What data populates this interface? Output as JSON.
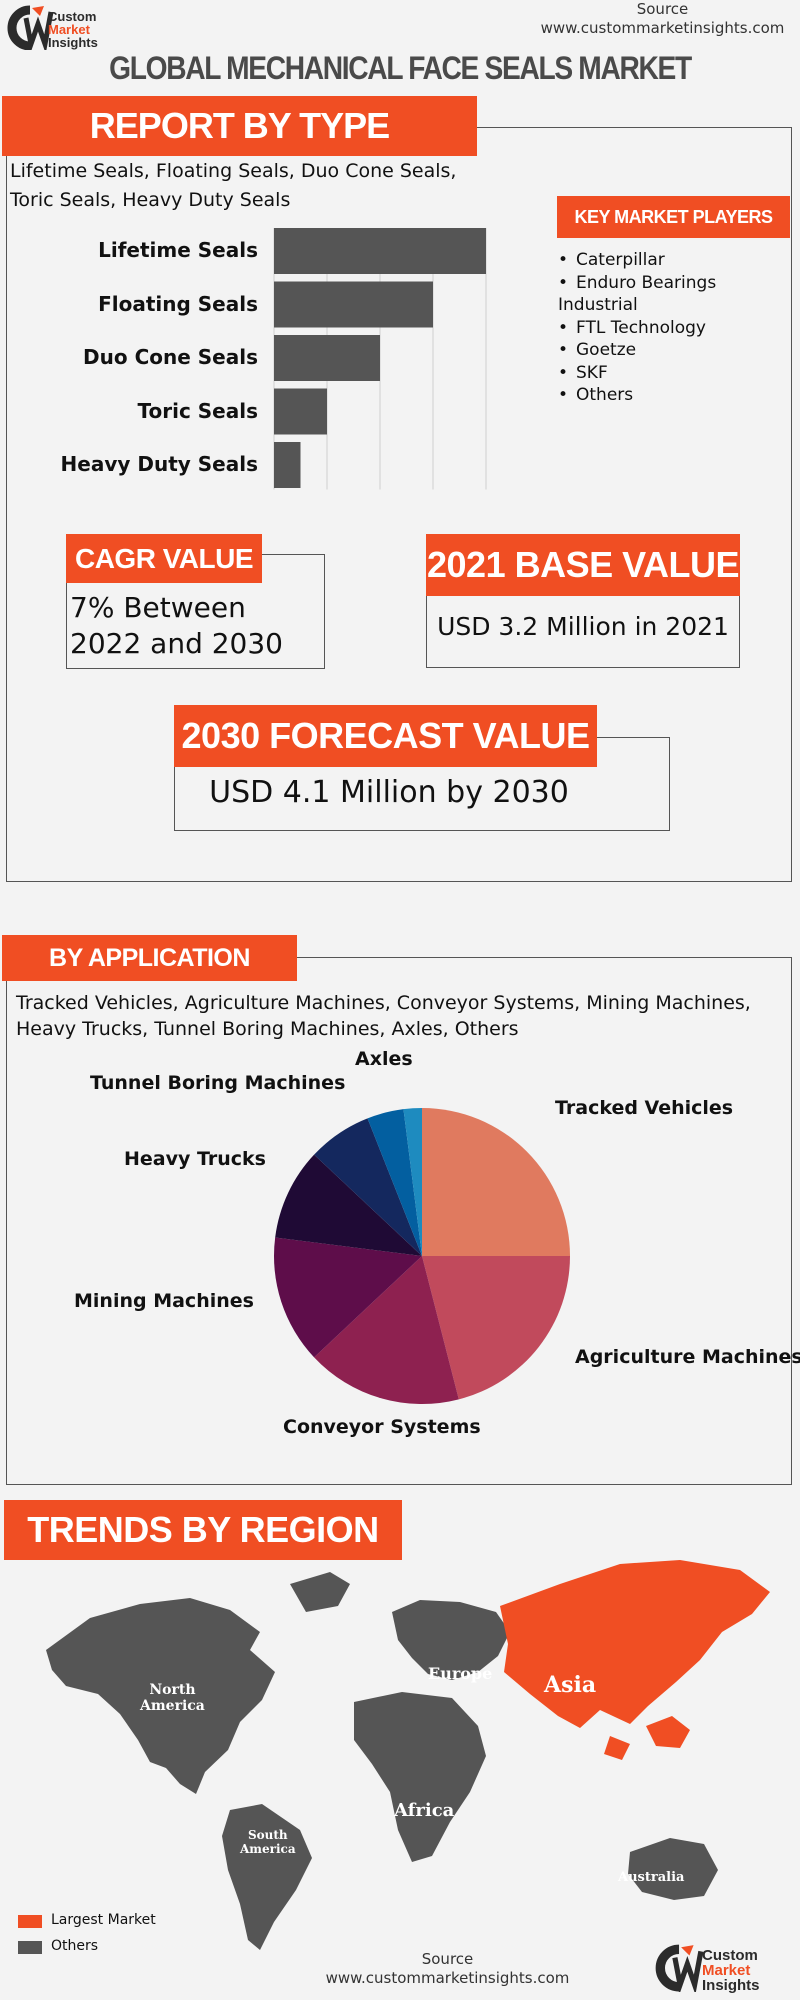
{
  "header": {
    "logo": {
      "line1": "Custom",
      "line2": "Market",
      "line3": "Insights"
    },
    "source_label": "Source",
    "source_url": "www.custommarketinsights.com",
    "title": "GLOBAL MECHANICAL FACE SEALS MARKET"
  },
  "report_by_type": {
    "heading": "REPORT BY TYPE",
    "description": "Lifetime Seals, Floating Seals, Duo Cone Seals, Toric Seals, Heavy Duty Seals",
    "key_players_heading": "KEY MARKET PLAYERS",
    "key_players": [
      "Caterpillar",
      "Enduro Bearings Industrial",
      "FTL Technology",
      "Goetze",
      "SKF",
      "Others"
    ]
  },
  "chart_data": [
    {
      "type": "bar",
      "orientation": "horizontal",
      "categories": [
        "Lifetime Seals",
        "Floating Seals",
        "Duo Cone Seals",
        "Toric Seals",
        "Heavy Duty Seals"
      ],
      "values": [
        4,
        3,
        2,
        1,
        0.5
      ],
      "xlim": [
        0,
        4
      ],
      "bar_color": "#555555",
      "grid": true
    },
    {
      "type": "pie",
      "categories": [
        "Tracked Vehicles",
        "Agriculture Machines",
        "Conveyor Systems",
        "Mining Machines",
        "Heavy Trucks",
        "Tunnel Boring Machines",
        "Axles",
        "Others"
      ],
      "values": [
        25,
        21,
        17,
        14,
        10,
        7,
        4,
        2
      ],
      "colors": [
        "#e07a5f",
        "#c14a5c",
        "#8e2150",
        "#5e0d4a",
        "#1f0a35",
        "#14285e",
        "#035fa0",
        "#1e8bbf"
      ]
    }
  ],
  "metrics": {
    "cagr_heading": "CAGR VALUE",
    "cagr_text": "7% Between 2022 and 2030",
    "base_heading": "2021 BASE VALUE",
    "base_text": "USD 3.2 Million in 2021",
    "forecast_heading": "2030 FORECAST  VALUE",
    "forecast_text": "USD 4.1 Million by 2030"
  },
  "by_application": {
    "heading": "BY APPLICATION",
    "description": "Tracked Vehicles, Agriculture Machines, Conveyor Systems, Mining Machines, Heavy Trucks, Tunnel Boring Machines, Axles, Others",
    "labels": {
      "axles": "Axles",
      "tunnel": "Tunnel Boring Machines",
      "tracked": "Tracked Vehicles",
      "heavy": "Heavy Trucks",
      "mining": "Mining Machines",
      "agri": "Agriculture Machines",
      "conveyor": "Conveyor Systems"
    }
  },
  "region": {
    "heading": "TRENDS BY REGION",
    "north_america": "North America",
    "north_line1": "North",
    "north_line2": "America",
    "south_line1": "South",
    "south_line2": "America",
    "europe": "Europe",
    "asia": "Asia",
    "africa": "Africa",
    "australia": "Australia",
    "legend_largest": "Largest Market",
    "legend_others": "Others",
    "largest_color": "#f04e23",
    "others_color": "#555555"
  },
  "footer": {
    "source_label": "Source",
    "source_url": "www.custommarketinsights.com",
    "logo": {
      "line1": "Custom",
      "line2": "Market",
      "line3": "Insights"
    }
  }
}
